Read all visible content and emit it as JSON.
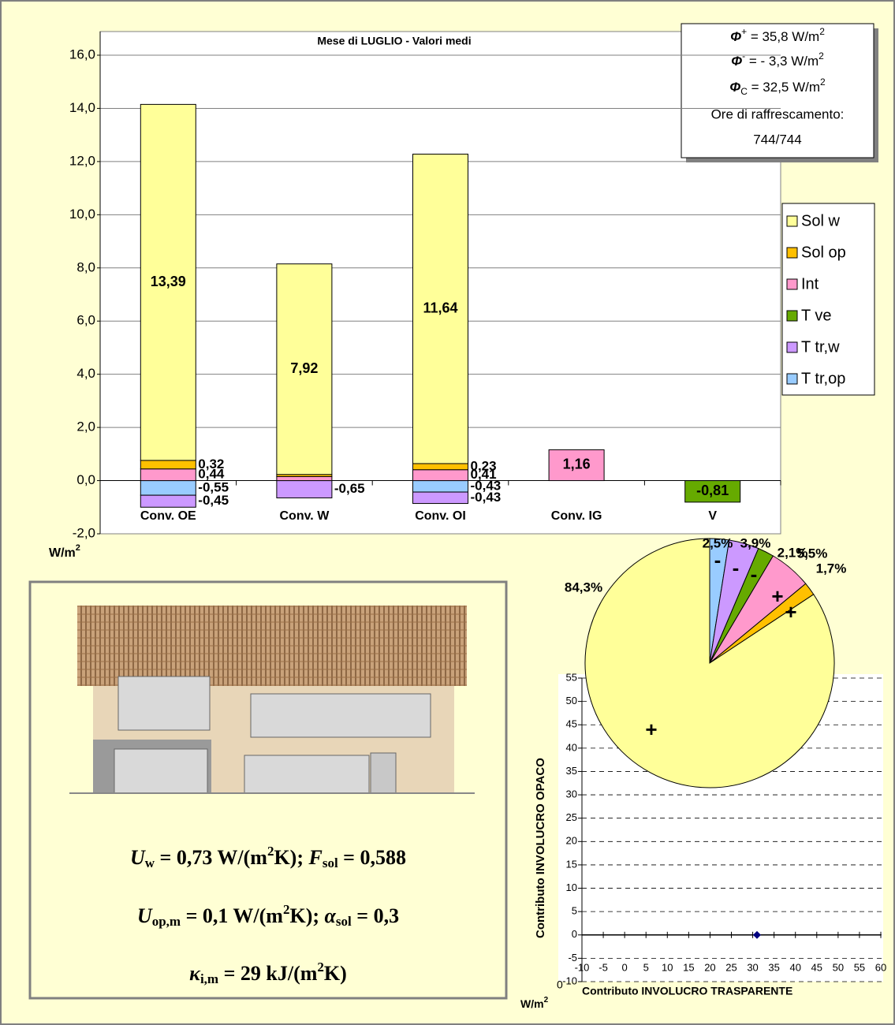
{
  "chart_data": [
    {
      "type": "bar",
      "stacked": true,
      "title": "Mese di LUGLIO - Valori medi",
      "y_label": "W/m",
      "y_label_sup": "2",
      "categories": [
        "Conv. OE",
        "Conv. W",
        "Conv. OI",
        "Conv. IG",
        "V"
      ],
      "series": [
        {
          "name": "Sol w",
          "color": "#ffff99",
          "values": [
            13.39,
            7.92,
            11.64,
            null,
            null
          ],
          "value_labels": [
            "13,39",
            "7,92",
            "11,64",
            null,
            null
          ]
        },
        {
          "name": "Sol op",
          "color": "#ffc000",
          "values": [
            0.32,
            0.08,
            0.23,
            null,
            null
          ],
          "value_labels": [
            "0,32",
            null,
            "0,23",
            null,
            null
          ]
        },
        {
          "name": "Int",
          "color": "#ff99cc",
          "values": [
            0.44,
            0.15,
            0.41,
            1.16,
            null
          ],
          "value_labels": [
            "0,44",
            null,
            "0,41",
            "1,16",
            null
          ]
        },
        {
          "name": "T ve",
          "color": "#66aa00",
          "values": [
            null,
            null,
            null,
            null,
            -0.81
          ],
          "value_labels": [
            null,
            null,
            null,
            null,
            "-0,81"
          ]
        },
        {
          "name": "T tr,w",
          "color": "#cc99ff",
          "values": [
            -0.45,
            -0.65,
            -0.43,
            null,
            null
          ],
          "value_labels": [
            "-0,45",
            "-0,65",
            "-0,43",
            null,
            null
          ]
        },
        {
          "name": "T tr,op",
          "color": "#99ccff",
          "values": [
            -0.55,
            null,
            -0.43,
            null,
            null
          ],
          "value_labels": [
            "-0,55",
            null,
            "-0,43",
            null,
            null
          ]
        }
      ],
      "ylim": [
        -2,
        16
      ],
      "yticks": [
        {
          "value": -2,
          "label": "-2,0"
        },
        {
          "value": 0,
          "label": "0,0"
        },
        {
          "value": 2,
          "label": "2,0"
        },
        {
          "value": 4,
          "label": "4,0"
        },
        {
          "value": 6,
          "label": "6,0"
        },
        {
          "value": 8,
          "label": "8,0"
        },
        {
          "value": 10,
          "label": "10,0"
        },
        {
          "value": 12,
          "label": "12,0"
        },
        {
          "value": 14,
          "label": "14,0"
        },
        {
          "value": 16,
          "label": "16,0"
        }
      ],
      "grid": true,
      "legend": "right"
    },
    {
      "type": "pie",
      "values": [
        2.5,
        3.9,
        2.1,
        5.5,
        1.7,
        84.3
      ],
      "value_labels": [
        "2,5%",
        "3,9%",
        "2,1%",
        "5,5%",
        "1,7%",
        "84,3%"
      ],
      "signs": [
        "-",
        "-",
        "-",
        "+",
        "+",
        "+"
      ],
      "colors": [
        "#99ccff",
        "#cc99ff",
        "#66aa00",
        "#ff99cc",
        "#ffc000",
        "#ffff99"
      ],
      "label_color": "#ff0000"
    },
    {
      "type": "scatter",
      "x_label": "Contributo INVOLUCRO TRASPARENTE",
      "y_label": "Contributo INVOLUCRO OPACO",
      "unit_label": "W/m",
      "unit_sup": "2",
      "corner_label": "0",
      "x": [
        31
      ],
      "y": [
        0
      ],
      "color": "#000080",
      "xlim": [
        -10,
        60
      ],
      "xticks": [
        -10,
        -5,
        0,
        5,
        10,
        15,
        20,
        25,
        30,
        35,
        40,
        45,
        50,
        55,
        60
      ],
      "ylim": [
        -10,
        55
      ],
      "yticks": [
        -10,
        -5,
        0,
        5,
        10,
        15,
        20,
        25,
        30,
        35,
        40,
        45,
        50,
        55
      ],
      "grid": "dashed"
    }
  ],
  "info_box": {
    "lines": [
      [
        "Φ",
        "+",
        " = 35,8 W/m",
        "2"
      ],
      [
        "Φ",
        "-",
        " = - 3,3 W/m",
        "2"
      ],
      [
        "Φ",
        "C",
        " = 32,5 W/m",
        "2"
      ],
      "Ore di raffrescamento:",
      "744/744"
    ]
  },
  "panel": {
    "formulas": [
      [
        "U",
        "w",
        " = 0,73 W/(m",
        "2",
        "K); ",
        "F",
        "sol",
        " = 0,588"
      ],
      [
        "U",
        "op,m",
        " = 0,1 W/(m",
        "2",
        "K); ",
        "α",
        "sol",
        " = 0,3"
      ],
      [
        "κ",
        "i,m",
        " = 29 kJ/(m",
        "2",
        "K)"
      ]
    ]
  }
}
